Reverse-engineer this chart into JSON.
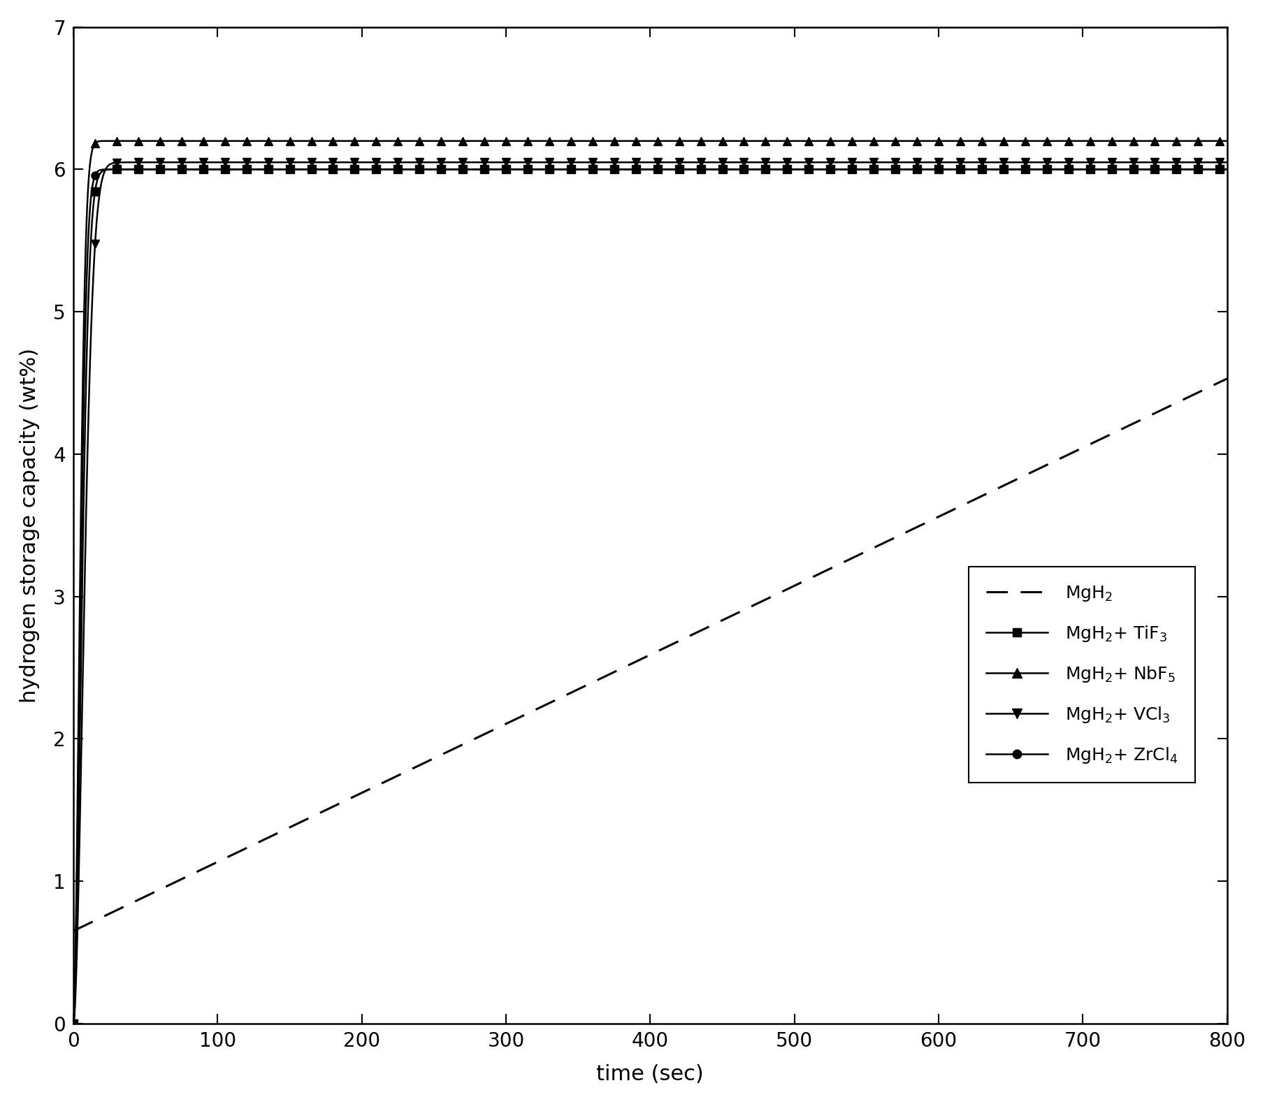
{
  "title": "",
  "xlabel": "time (sec)",
  "ylabel": "hydrogen storage capacity (wt%)",
  "xlim": [
    0,
    800
  ],
  "ylim": [
    0,
    7
  ],
  "xticks": [
    0,
    100,
    200,
    300,
    400,
    500,
    600,
    700,
    800
  ],
  "yticks": [
    0,
    1,
    2,
    3,
    4,
    5,
    6,
    7
  ],
  "background_color": "#ffffff",
  "mgh2_y0": 0.65,
  "mgh2_slope": 0.00485,
  "mgh2_power": 1.0,
  "tif3_ymax": 6.0,
  "tif3_y0": 0.0,
  "tif3_k": 0.028,
  "tif3_n": 1.8,
  "nbf5_ymax": 6.2,
  "nbf5_y0": 0.0,
  "nbf5_k": 0.045,
  "nbf5_n": 1.8,
  "vcl3_ymax": 6.05,
  "vcl3_y0": 0.0,
  "vcl3_k": 0.018,
  "vcl3_n": 1.8,
  "zrcl4_ymax": 6.0,
  "zrcl4_y0": 0.0,
  "zrcl4_k": 0.038,
  "zrcl4_n": 1.8,
  "marker_interval": 15,
  "fontsize_labels": 22,
  "fontsize_ticks": 20,
  "fontsize_legend": 18
}
